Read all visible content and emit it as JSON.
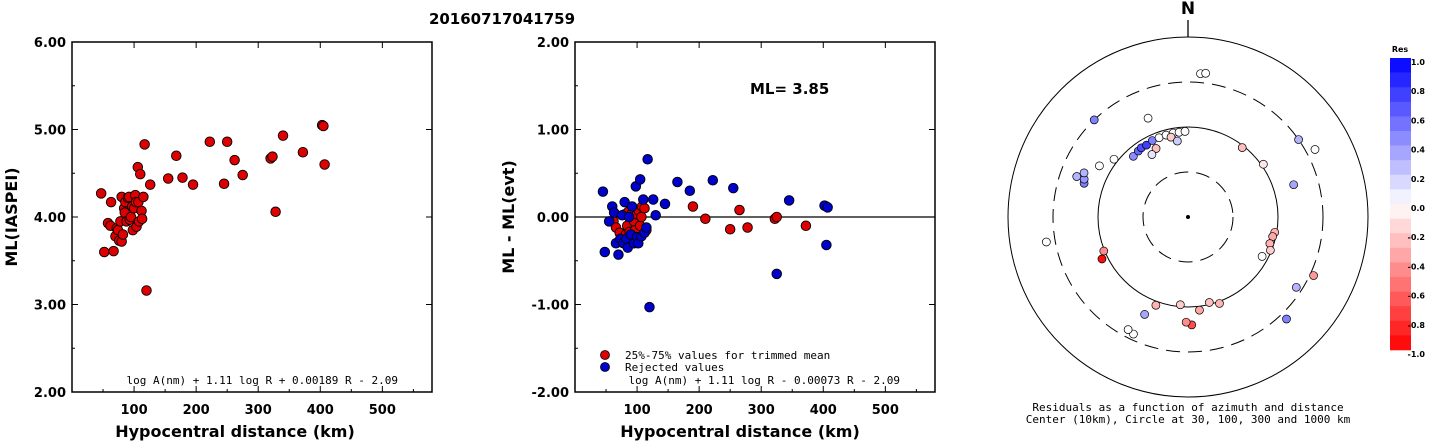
{
  "page_title": "20160717041759",
  "chart_data": [
    {
      "type": "scatter",
      "xlabel": "Hypocentral distance (km)",
      "ylabel": "ML(IASPEI)",
      "xlim": [
        0,
        580
      ],
      "ylim": [
        2.0,
        6.0
      ],
      "xticks": [
        "100",
        "200",
        "300",
        "400",
        "500"
      ],
      "yticks": [
        "2.00",
        "3.00",
        "4.00",
        "5.00",
        "6.00"
      ],
      "formula": "log A(nm) + 1.11 log R + 0.00189 R - 2.09",
      "series": [
        {
          "color": "#dd0000",
          "points": [
            [
              47,
              4.27
            ],
            [
              52,
              3.6
            ],
            [
              58,
              3.93
            ],
            [
              62,
              3.9
            ],
            [
              63,
              4.17
            ],
            [
              67,
              3.61
            ],
            [
              70,
              3.78
            ],
            [
              72,
              3.87
            ],
            [
              74,
              3.85
            ],
            [
              76,
              3.73
            ],
            [
              78,
              3.95
            ],
            [
              80,
              4.23
            ],
            [
              80,
              3.72
            ],
            [
              82,
              3.8
            ],
            [
              84,
              4.1
            ],
            [
              85,
              4.05
            ],
            [
              86,
              4.17
            ],
            [
              88,
              3.95
            ],
            [
              90,
              4.22
            ],
            [
              92,
              4.23
            ],
            [
              93,
              3.97
            ],
            [
              95,
              4.0
            ],
            [
              97,
              4.12
            ],
            [
              98,
              3.85
            ],
            [
              100,
              4.1
            ],
            [
              102,
              4.25
            ],
            [
              103,
              4.17
            ],
            [
              104,
              3.89
            ],
            [
              106,
              4.57
            ],
            [
              107,
              4.17
            ],
            [
              108,
              3.95
            ],
            [
              110,
              4.49
            ],
            [
              112,
              4.07
            ],
            [
              113,
              3.98
            ],
            [
              115,
              4.23
            ],
            [
              117,
              4.83
            ],
            [
              120,
              3.16
            ],
            [
              126,
              4.37
            ],
            [
              155,
              4.44
            ],
            [
              168,
              4.7
            ],
            [
              178,
              4.45
            ],
            [
              195,
              4.37
            ],
            [
              222,
              4.86
            ],
            [
              245,
              4.38
            ],
            [
              250,
              4.86
            ],
            [
              262,
              4.65
            ],
            [
              275,
              4.48
            ],
            [
              320,
              4.67
            ],
            [
              323,
              4.69
            ],
            [
              328,
              4.06
            ],
            [
              340,
              4.93
            ],
            [
              372,
              4.74
            ],
            [
              403,
              5.05
            ],
            [
              405,
              5.04
            ],
            [
              407,
              4.6
            ]
          ]
        }
      ]
    },
    {
      "type": "scatter",
      "xlabel": "Hypocentral distance (km)",
      "ylabel": "ML - ML(evt)",
      "xlim": [
        0,
        580
      ],
      "ylim": [
        -2.0,
        2.0
      ],
      "xticks": [
        "100",
        "200",
        "300",
        "400",
        "500"
      ],
      "yticks": [
        "-2.00",
        "-1.00",
        "0.00",
        "1.00",
        "2.00"
      ],
      "reference_line": 0.0,
      "annotation": "ML= 3.85",
      "formula": "log A(nm) + 1.11 log R - 0.00073 R - 2.09",
      "series": [
        {
          "name": "25%-75% values for trimmed mean",
          "color": "#dd0000",
          "points": [
            [
              62,
              -0.05
            ],
            [
              66,
              -0.12
            ],
            [
              72,
              -0.18
            ],
            [
              80,
              0.03
            ],
            [
              82,
              -0.2
            ],
            [
              84,
              -0.1
            ],
            [
              86,
              0.06
            ],
            [
              88,
              -0.17
            ],
            [
              90,
              0.02
            ],
            [
              92,
              0.04
            ],
            [
              95,
              -0.05
            ],
            [
              97,
              -0.15
            ],
            [
              100,
              0.03
            ],
            [
              103,
              0.07
            ],
            [
              105,
              -0.1
            ],
            [
              107,
              0.0
            ],
            [
              108,
              0.12
            ],
            [
              112,
              0.1
            ],
            [
              115,
              -0.15
            ],
            [
              190,
              0.12
            ],
            [
              210,
              -0.02
            ],
            [
              250,
              -0.14
            ],
            [
              265,
              0.08
            ],
            [
              278,
              -0.12
            ],
            [
              322,
              -0.02
            ],
            [
              325,
              0.0
            ],
            [
              372,
              -0.1
            ],
            [
              405,
              0.12
            ]
          ]
        },
        {
          "name": "Rejected values",
          "color": "#0000cc",
          "points": [
            [
              45,
              0.29
            ],
            [
              48,
              -0.4
            ],
            [
              55,
              -0.05
            ],
            [
              60,
              0.12
            ],
            [
              63,
              0.05
            ],
            [
              66,
              -0.3
            ],
            [
              70,
              -0.43
            ],
            [
              73,
              -0.25
            ],
            [
              76,
              0.02
            ],
            [
              78,
              -0.3
            ],
            [
              80,
              0.17
            ],
            [
              83,
              -0.25
            ],
            [
              85,
              -0.35
            ],
            [
              87,
              0.0
            ],
            [
              90,
              -0.2
            ],
            [
              92,
              0.12
            ],
            [
              95,
              -0.3
            ],
            [
              98,
              0.35
            ],
            [
              100,
              -0.23
            ],
            [
              102,
              -0.3
            ],
            [
              105,
              0.43
            ],
            [
              107,
              -0.22
            ],
            [
              110,
              0.2
            ],
            [
              112,
              -0.18
            ],
            [
              115,
              -0.12
            ],
            [
              117,
              0.66
            ],
            [
              120,
              -1.03
            ],
            [
              126,
              0.2
            ],
            [
              130,
              0.02
            ],
            [
              145,
              0.15
            ],
            [
              165,
              0.4
            ],
            [
              185,
              0.3
            ],
            [
              222,
              0.42
            ],
            [
              255,
              0.33
            ],
            [
              325,
              -0.65
            ],
            [
              345,
              0.19
            ],
            [
              402,
              0.13
            ],
            [
              405,
              -0.32
            ],
            [
              407,
              0.11
            ]
          ]
        }
      ]
    },
    {
      "type": "polar-scatter",
      "north_label": "N",
      "colorbar_title": "Res",
      "colorbar_ticks": [
        "1.0",
        "0.8",
        "0.6",
        "0.4",
        "0.2",
        "0.0",
        "-0.2",
        "-0.4",
        "-0.6",
        "-0.8",
        "-1.0"
      ],
      "circles_km": [
        10,
        30,
        100,
        300,
        1000
      ],
      "caption_line1": "Residuals as a function of azimuth and distance",
      "caption_line2": "Center (10km), Circle at 30, 100, 300 and 1000 km",
      "points": [
        {
          "az": 5,
          "dist": 380,
          "res": 0.0
        },
        {
          "az": 7,
          "dist": 390,
          "res": 0.0
        },
        {
          "az": 55,
          "dist": 300,
          "res": 0.3
        },
        {
          "az": 73,
          "dist": 165,
          "res": 0.35
        },
        {
          "az": 62,
          "dist": 380,
          "res": 0.0
        },
        {
          "az": 55,
          "dist": 105,
          "res": -0.1
        },
        {
          "az": 38,
          "dist": 95,
          "res": -0.25
        },
        {
          "az": 100,
          "dist": 95,
          "res": -0.3
        },
        {
          "az": 103,
          "dist": 92,
          "res": -0.35
        },
        {
          "az": 108,
          "dist": 90,
          "res": -0.3
        },
        {
          "az": 112,
          "dist": 97,
          "res": -0.2
        },
        {
          "az": 118,
          "dist": 85,
          "res": 0.0
        },
        {
          "az": 115,
          "dist": 330,
          "res": -0.4
        },
        {
          "az": 123,
          "dist": 260,
          "res": 0.3
        },
        {
          "az": 136,
          "dist": 360,
          "res": 0.5
        },
        {
          "az": 160,
          "dist": 105,
          "res": -0.3
        },
        {
          "az": 166,
          "dist": 95,
          "res": -0.25
        },
        {
          "az": 173,
          "dist": 110,
          "res": -0.35
        },
        {
          "az": 178,
          "dist": 155,
          "res": -0.7
        },
        {
          "az": 181,
          "dist": 145,
          "res": -0.45
        },
        {
          "az": 185,
          "dist": 95,
          "res": -0.2
        },
        {
          "az": 200,
          "dist": 110,
          "res": -0.3
        },
        {
          "az": 204,
          "dist": 150,
          "res": 0.35
        },
        {
          "az": 205,
          "dist": 260,
          "res": 0.0
        },
        {
          "az": 208,
          "dist": 250,
          "res": 0.0
        },
        {
          "az": 248,
          "dist": 102,
          "res": -0.45
        },
        {
          "az": 244,
          "dist": 115,
          "res": -0.95
        },
        {
          "az": 260,
          "dist": 380,
          "res": 0.0
        },
        {
          "az": 288,
          "dist": 160,
          "res": 0.5
        },
        {
          "az": 290,
          "dist": 165,
          "res": 0.4
        },
        {
          "az": 293,
          "dist": 175,
          "res": 0.3
        },
        {
          "az": 300,
          "dist": 135,
          "res": 0.0
        },
        {
          "az": 308,
          "dist": 110,
          "res": 0.0
        },
        {
          "az": 318,
          "dist": 80,
          "res": 0.45
        },
        {
          "az": 323,
          "dist": 82,
          "res": 0.6
        },
        {
          "az": 326,
          "dist": 84,
          "res": 0.7
        },
        {
          "az": 330,
          "dist": 83,
          "res": 0.75
        },
        {
          "az": 335,
          "dist": 86,
          "res": 0.5
        },
        {
          "az": 340,
          "dist": 86,
          "res": 0.0
        },
        {
          "az": 345,
          "dist": 87,
          "res": 0.0
        },
        {
          "az": 350,
          "dist": 88,
          "res": 0.0
        },
        {
          "az": 354,
          "dist": 88,
          "res": 0.0
        },
        {
          "az": 358,
          "dist": 89,
          "res": 0.0
        },
        {
          "az": 348,
          "dist": 80,
          "res": -0.2
        },
        {
          "az": 335,
          "dist": 68,
          "res": -0.25
        },
        {
          "az": 352,
          "dist": 70,
          "res": 0.2
        },
        {
          "az": 330,
          "dist": 62,
          "res": 0.1
        },
        {
          "az": 316,
          "dist": 300,
          "res": 0.5
        },
        {
          "az": 338,
          "dist": 150,
          "res": 0.0
        },
        {
          "az": 290,
          "dist": 200,
          "res": 0.3
        }
      ]
    }
  ]
}
